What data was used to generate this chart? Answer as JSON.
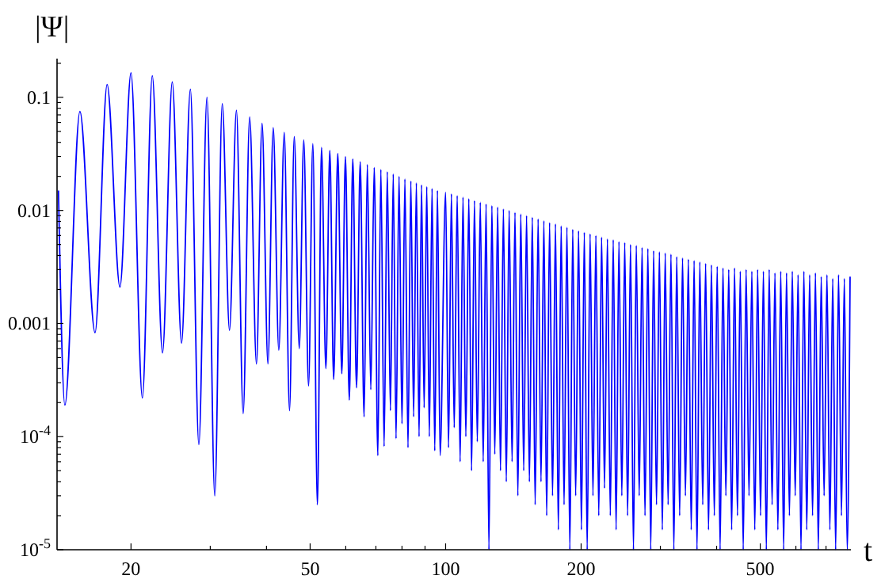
{
  "chart_data": {
    "type": "line",
    "xlabel": "t",
    "ylabel": "|Ψ|",
    "log": "xy",
    "grid": false,
    "marker": "none",
    "line_style": "solid",
    "xlim": [
      13.7,
      795
    ],
    "xticks": [
      20,
      {
        "value": 30,
        "label": null
      },
      {
        "value": 40,
        "label": null
      },
      50,
      {
        "value": 60,
        "label": null
      },
      {
        "value": 70,
        "label": null
      },
      {
        "value": 80,
        "label": null
      },
      {
        "value": 90,
        "label": null
      },
      100,
      200,
      {
        "value": 300,
        "label": null
      },
      {
        "value": 400,
        "label": null
      },
      500,
      {
        "value": 600,
        "label": null
      },
      {
        "value": 700,
        "label": null
      }
    ],
    "ylim": [
      1e-05,
      0.22
    ],
    "yticks": [
      {
        "value": 1e-05,
        "label": "10$^{-5}$"
      },
      {
        "value": 2e-05,
        "label": null
      },
      {
        "value": 3e-05,
        "label": null
      },
      {
        "value": 4e-05,
        "label": null
      },
      {
        "value": 5e-05,
        "label": null
      },
      {
        "value": 6e-05,
        "label": null
      },
      {
        "value": 7e-05,
        "label": null
      },
      {
        "value": 8e-05,
        "label": null
      },
      {
        "value": 9e-05,
        "label": null
      },
      {
        "value": 0.0001,
        "label": "10$^{-4}$"
      },
      {
        "value": 0.0002,
        "label": null
      },
      {
        "value": 0.0003,
        "label": null
      },
      {
        "value": 0.0004,
        "label": null
      },
      {
        "value": 0.0005,
        "label": null
      },
      {
        "value": 0.0006,
        "label": null
      },
      {
        "value": 0.0007,
        "label": null
      },
      {
        "value": 0.0008,
        "label": null
      },
      {
        "value": 0.0009,
        "label": null
      },
      0.001,
      {
        "value": 0.002,
        "label": null
      },
      {
        "value": 0.003,
        "label": null
      },
      {
        "value": 0.004,
        "label": null
      },
      {
        "value": 0.005,
        "label": null
      },
      {
        "value": 0.006,
        "label": null
      },
      {
        "value": 0.007,
        "label": null
      },
      {
        "value": 0.008,
        "label": null
      },
      {
        "value": 0.009,
        "label": null
      },
      0.01,
      {
        "value": 0.02,
        "label": null
      },
      {
        "value": 0.03,
        "label": null
      },
      {
        "value": 0.04,
        "label": null
      },
      {
        "value": 0.05,
        "label": null
      },
      {
        "value": 0.06,
        "label": null
      },
      {
        "value": 0.07,
        "label": null
      },
      {
        "value": 0.08,
        "label": null
      },
      {
        "value": 0.09,
        "label": null
      },
      0.1,
      {
        "value": 0.2,
        "label": null
      }
    ],
    "series": [
      {
        "color": "#0000ff",
        "x": [
          13.8,
          14.26,
          15.4,
          16.64,
          17.7,
          18.9,
          20.0,
          21.2,
          22.3,
          23.5,
          24.7,
          25.9,
          27.1,
          28.3,
          29.5,
          30.7,
          31.9,
          33.1,
          34.3,
          35.5,
          36.7,
          38.0,
          39.1,
          40.3,
          41.4,
          42.6,
          43.8,
          45.0,
          46.1,
          47.3,
          48.4,
          49.6,
          50.7,
          51.9,
          53.0,
          54.2,
          55.3,
          56.4,
          57.6,
          58.8,
          59.9,
          61.1,
          62.2,
          63.4,
          64.6,
          65.9,
          67.0,
          68.2,
          69.4,
          70.7,
          71.8,
          73.0,
          74.2,
          75.4,
          76.5,
          77.6,
          78.8,
          80.0,
          81.2,
          82.5,
          83.7,
          84.9,
          86.1,
          87.3,
          88.4,
          89.6,
          90.8,
          92.0,
          93.3,
          94.6,
          95.9,
          97.2,
          100,
          101.5,
          103,
          104.5,
          106.1,
          107.7,
          109.3,
          110.9,
          112.6,
          114.2,
          115.9,
          117.6,
          119.4,
          121.2,
          123,
          124.8,
          126.7,
          128.6,
          130.5,
          132.4,
          134.4,
          136.4,
          138.4,
          140.5,
          142.6,
          144.7,
          146.9,
          149.1,
          151.3,
          153.5,
          155.8,
          158.1,
          160.5,
          162.9,
          165.3,
          167.7,
          170.2,
          172.8,
          175.4,
          178,
          180.6,
          183.3,
          186,
          188.8,
          191.6,
          194.5,
          197.4,
          200.3,
          203.3,
          206.3,
          209.4,
          212.5,
          215.7,
          218.9,
          222.1,
          225.4,
          228.8,
          232.2,
          235.7,
          239.2,
          242.7,
          246.3,
          250,
          253.7,
          257.5,
          261.4,
          265.2,
          269.2,
          273.2,
          277.3,
          281.4,
          285.6,
          289.8,
          294.1,
          298.5,
          303,
          307.5,
          312.1,
          316.7,
          321.4,
          326.2,
          331.1,
          336,
          341,
          346.1,
          351.3,
          356.5,
          361.8,
          367.1,
          372.6,
          378.1,
          383.8,
          389.5,
          395.3,
          401.2,
          407.2,
          413.2,
          419.4,
          425.6,
          432,
          438.4,
          445,
          451.5,
          458.3,
          465.1,
          472.1,
          479,
          486.2,
          493.4,
          500.8,
          508.2,
          515.8,
          523.4,
          531.3,
          539.1,
          547.2,
          555.3,
          563.6,
          572,
          580.5,
          589.1,
          597.9,
          606.8,
          615.9,
          625,
          634.4,
          643.8,
          653.4,
          663.1,
          673,
          683,
          693.2,
          703.4,
          714,
          724.5,
          735.4,
          746.3,
          757.5,
          768.7,
          780.2,
          791.7
        ],
        "values": [
          0.015,
          0.00019,
          0.075,
          0.00083,
          0.13,
          0.0021,
          0.165,
          0.00022,
          0.155,
          0.00055,
          0.137,
          0.00067,
          0.118,
          8.5e-05,
          0.1,
          3e-05,
          0.088,
          0.00087,
          0.077,
          0.00016,
          0.067,
          0.00044,
          0.059,
          0.00044,
          0.054,
          0.00058,
          0.049,
          0.00017,
          0.045,
          0.0006,
          0.042,
          0.00028,
          0.039,
          2.5e-05,
          0.036,
          0.0004,
          0.034,
          0.00032,
          0.032,
          0.00036,
          0.03,
          0.00021,
          0.0285,
          0.00027,
          0.027,
          0.00015,
          0.0255,
          0.00026,
          0.024,
          6.8e-05,
          0.023,
          8.2e-05,
          0.022,
          0.00017,
          0.021,
          9.6e-05,
          0.02,
          0.00013,
          0.019,
          8e-05,
          0.0182,
          0.00015,
          0.0175,
          0.0001,
          0.0168,
          0.00018,
          0.0162,
          0.0001,
          0.0156,
          7.5e-05,
          0.015,
          6.8e-05,
          0.0145,
          8e-05,
          0.014,
          0.00012,
          0.0135,
          6e-05,
          0.0131,
          0.0001,
          0.0127,
          5e-05,
          0.0122,
          9e-05,
          0.0118,
          6e-05,
          0.0114,
          1e-05,
          0.011,
          7e-05,
          0.0107,
          5e-05,
          0.0103,
          4e-05,
          0.01,
          6e-05,
          0.0096,
          3e-05,
          0.0093,
          5e-05,
          0.009,
          4e-05,
          0.0087,
          2.5e-05,
          0.0084,
          4e-05,
          0.0081,
          2e-05,
          0.0078,
          3e-05,
          0.0076,
          1.5e-05,
          0.0073,
          2.5e-05,
          0.0071,
          1e-05,
          0.0068,
          3e-05,
          0.0066,
          1.5e-05,
          0.0064,
          1e-05,
          0.0062,
          3e-05,
          0.006,
          2e-05,
          0.0058,
          3.5e-05,
          0.0056,
          2e-05,
          0.0055,
          1.5e-05,
          0.0053,
          3e-05,
          0.0052,
          2e-05,
          0.005,
          1e-05,
          0.0049,
          3e-05,
          0.0047,
          2e-05,
          0.0046,
          1e-05,
          0.0044,
          2.5e-05,
          0.0043,
          1.5e-05,
          0.0042,
          2.5e-05,
          0.0041,
          1e-05,
          0.0039,
          2e-05,
          0.0038,
          3e-05,
          0.0037,
          1.5e-05,
          0.0036,
          1e-05,
          0.0035,
          2.5e-05,
          0.0034,
          1.5e-05,
          0.0033,
          2e-05,
          0.0032,
          1e-05,
          0.0031,
          3e-05,
          0.003,
          1.5e-05,
          0.0031,
          2e-05,
          0.0029,
          1e-05,
          0.003,
          3e-05,
          0.0029,
          1.5e-05,
          0.003,
          2e-05,
          0.0029,
          1e-05,
          0.003,
          2.5e-05,
          0.0028,
          1.5e-05,
          0.0029,
          1e-05,
          0.0028,
          2e-05,
          0.0029,
          3e-05,
          0.0027,
          1e-05,
          0.0029,
          1.5e-05,
          0.0027,
          2e-05,
          0.0028,
          1e-05,
          0.0026,
          3e-05,
          0.0027,
          1.5e-05,
          0.0025,
          1e-05,
          0.0027,
          2e-05,
          0.0025,
          1e-05,
          0.0026
        ]
      }
    ]
  }
}
